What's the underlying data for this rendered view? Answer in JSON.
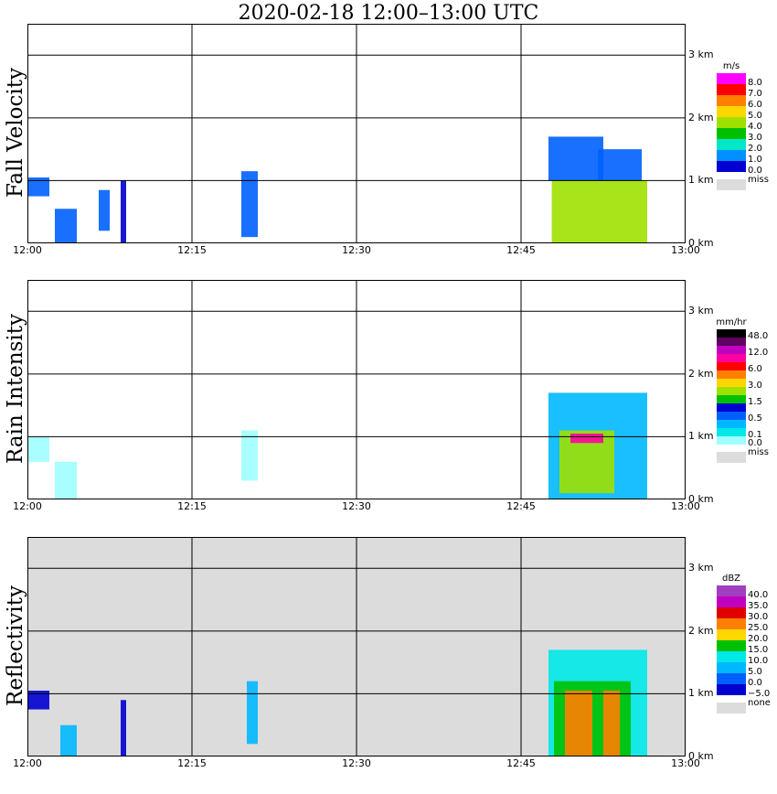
{
  "title": "2020-02-18  12:00–13:00 UTC",
  "x_ticks": [
    "12:00",
    "12:15",
    "12:30",
    "12:45",
    "13:00"
  ],
  "y_ticks": [
    "0 km",
    "1 km",
    "2 km",
    "3 km"
  ],
  "chart_data": [
    {
      "type": "heatmap",
      "title": "Fall Velocity",
      "unit": "m/s",
      "xlim": [
        "12:00",
        "13:00"
      ],
      "ylim_km": [
        0,
        3.5
      ],
      "grid": true,
      "legend_position": "right",
      "legend": [
        {
          "label": "8.0",
          "color": "#ff00ff"
        },
        {
          "label": "7.0",
          "color": "#ff0000"
        },
        {
          "label": "6.0",
          "color": "#ff8000"
        },
        {
          "label": "5.0",
          "color": "#ffd700"
        },
        {
          "label": "4.0",
          "color": "#a0e000"
        },
        {
          "label": "3.0",
          "color": "#00c000"
        },
        {
          "label": "2.0",
          "color": "#00e8c8"
        },
        {
          "label": "1.0",
          "color": "#0090ff"
        },
        {
          "label": "0.0",
          "color": "#0000d0"
        }
      ],
      "missing_label": "miss",
      "missing_color": "#dcdcdc",
      "echoes": [
        {
          "t0": 0.0,
          "t1": 2.0,
          "h0": 0.75,
          "h1": 1.05,
          "color": "#0060ff"
        },
        {
          "t0": 2.5,
          "t1": 4.5,
          "h0": 0.0,
          "h1": 0.55,
          "color": "#0060ff"
        },
        {
          "t0": 6.5,
          "t1": 7.5,
          "h0": 0.2,
          "h1": 0.85,
          "color": "#0060ff"
        },
        {
          "t0": 8.5,
          "t1": 9.0,
          "h0": 0.0,
          "h1": 1.0,
          "color": "#0000d0"
        },
        {
          "t0": 19.5,
          "t1": 21.0,
          "h0": 0.1,
          "h1": 1.15,
          "color": "#0060ff"
        },
        {
          "t0": 47.5,
          "t1": 52.5,
          "h0": 1.0,
          "h1": 1.7,
          "color": "#0060ff"
        },
        {
          "t0": 47.8,
          "t1": 56.5,
          "h0": 0.0,
          "h1": 1.0,
          "color": "#a0e000"
        },
        {
          "t0": 52.0,
          "t1": 56.0,
          "h0": 1.0,
          "h1": 1.5,
          "color": "#0060ff"
        }
      ]
    },
    {
      "type": "heatmap",
      "title": "Rain Intensity",
      "unit": "mm/hr",
      "xlim": [
        "12:00",
        "13:00"
      ],
      "ylim_km": [
        0,
        3.5
      ],
      "grid": true,
      "legend_position": "right",
      "legend": [
        {
          "label": "48.0",
          "color": "#000000"
        },
        {
          "label": "",
          "color": "#600060"
        },
        {
          "label": "12.0",
          "color": "#c000c0"
        },
        {
          "label": "",
          "color": "#ff00a0"
        },
        {
          "label": "6.0",
          "color": "#ff0000"
        },
        {
          "label": "",
          "color": "#ff8000"
        },
        {
          "label": "3.0",
          "color": "#ffd700"
        },
        {
          "label": "",
          "color": "#a0e000"
        },
        {
          "label": "1.5",
          "color": "#00c000"
        },
        {
          "label": "",
          "color": "#0000d0"
        },
        {
          "label": "0.5",
          "color": "#0060ff"
        },
        {
          "label": "",
          "color": "#00b8ff"
        },
        {
          "label": "0.1",
          "color": "#00e8e8"
        },
        {
          "label": "0.0",
          "color": "#a0ffff"
        }
      ],
      "missing_label": "miss",
      "missing_color": "#dcdcdc",
      "echoes": [
        {
          "t0": 0.0,
          "t1": 2.0,
          "h0": 0.6,
          "h1": 1.0,
          "color": "#a0ffff"
        },
        {
          "t0": 2.5,
          "t1": 4.5,
          "h0": 0.0,
          "h1": 0.6,
          "color": "#a0ffff"
        },
        {
          "t0": 19.5,
          "t1": 21.0,
          "h0": 0.3,
          "h1": 1.1,
          "color": "#a0ffff"
        },
        {
          "t0": 47.5,
          "t1": 56.5,
          "h0": 0.0,
          "h1": 1.7,
          "color": "#00b8ff"
        },
        {
          "t0": 48.5,
          "t1": 53.5,
          "h0": 0.1,
          "h1": 1.1,
          "color": "#a0e000"
        },
        {
          "t0": 49.5,
          "t1": 52.5,
          "h0": 0.9,
          "h1": 1.05,
          "color": "#ff00a0"
        }
      ]
    },
    {
      "type": "heatmap",
      "title": "Reflectivity",
      "unit": "dBZ",
      "xlim": [
        "12:00",
        "13:00"
      ],
      "ylim_km": [
        0,
        3.5
      ],
      "grid": true,
      "legend_position": "right",
      "background_color": "#dcdcdc",
      "legend": [
        {
          "label": "40.0",
          "color": "#a040c0"
        },
        {
          "label": "35.0",
          "color": "#c000c0"
        },
        {
          "label": "30.0",
          "color": "#e00000"
        },
        {
          "label": "25.0",
          "color": "#ff8000"
        },
        {
          "label": "20.0",
          "color": "#ffd700"
        },
        {
          "label": "15.0",
          "color": "#00c000"
        },
        {
          "label": "10.0",
          "color": "#00e8e8"
        },
        {
          "label": "5.0",
          "color": "#00b8ff"
        },
        {
          "label": "0.0",
          "color": "#0060ff"
        },
        {
          "label": "−5.0",
          "color": "#0000d0"
        }
      ],
      "missing_label": "none",
      "missing_color": "#dcdcdc",
      "echoes": [
        {
          "t0": 0.0,
          "t1": 2.0,
          "h0": 0.75,
          "h1": 1.05,
          "color": "#0000d0"
        },
        {
          "t0": 3.0,
          "t1": 4.5,
          "h0": 0.0,
          "h1": 0.5,
          "color": "#00b8ff"
        },
        {
          "t0": 8.5,
          "t1": 9.0,
          "h0": 0.0,
          "h1": 0.9,
          "color": "#0000d0"
        },
        {
          "t0": 20.0,
          "t1": 21.0,
          "h0": 0.2,
          "h1": 1.2,
          "color": "#00b8ff"
        },
        {
          "t0": 47.5,
          "t1": 56.5,
          "h0": 0.0,
          "h1": 1.7,
          "color": "#00e8e8"
        },
        {
          "t0": 48.0,
          "t1": 55.0,
          "h0": 0.0,
          "h1": 1.2,
          "color": "#00c000"
        },
        {
          "t0": 49.0,
          "t1": 51.5,
          "h0": 0.0,
          "h1": 1.05,
          "color": "#ff8000"
        },
        {
          "t0": 52.5,
          "t1": 54.0,
          "h0": 0.0,
          "h1": 1.05,
          "color": "#ff8000"
        }
      ]
    }
  ]
}
